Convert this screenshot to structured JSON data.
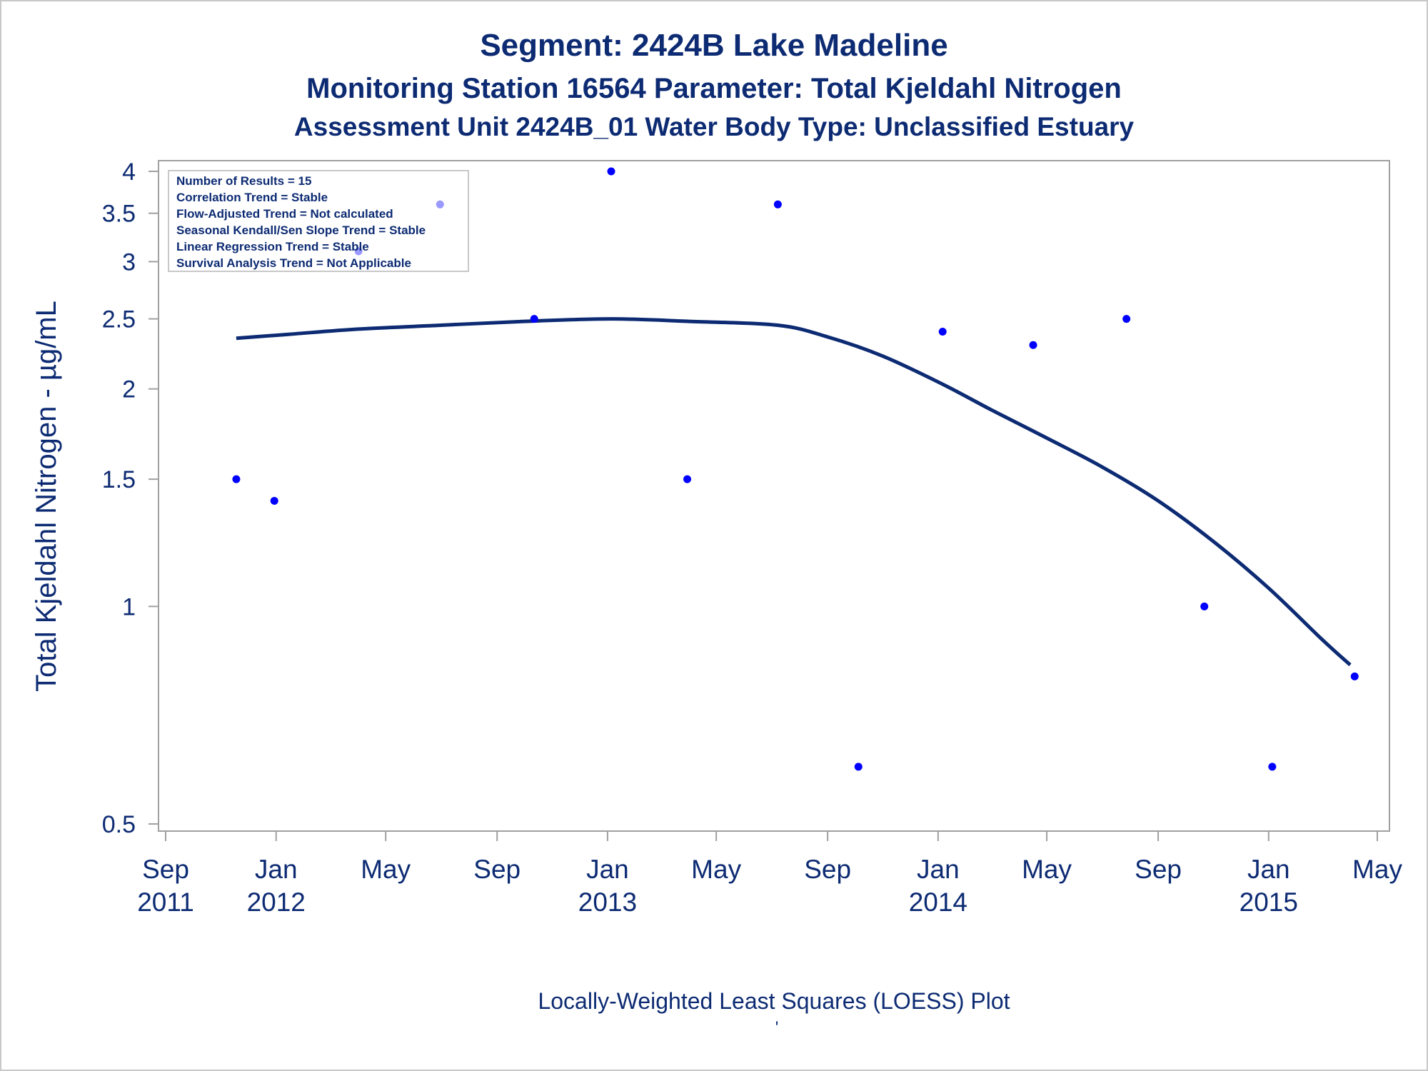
{
  "chart_data": {
    "type": "scatter",
    "title": "Segment: 2424B  Lake Madeline",
    "subtitle": "Monitoring Station 16564 Parameter: Total Kjeldahl Nitrogen",
    "subtitle2": "Assessment Unit 2424B_01   Water Body Type: Unclassified Estuary",
    "ylabel": "Total Kjeldahl Nitrogen -  µg/mL",
    "footnote": "Locally-Weighted Least Squares (LOESS) Plot",
    "footnote_mark": "'",
    "y_scale": "log",
    "ylim": [
      0.5,
      4
    ],
    "xlim": [
      "2011-09-01",
      "2015-05-01"
    ],
    "y_ticks": [
      {
        "value": 0.5,
        "label": "0.5"
      },
      {
        "value": 1,
        "label": "1"
      },
      {
        "value": 1.5,
        "label": "1.5"
      },
      {
        "value": 2,
        "label": "2"
      },
      {
        "value": 2.5,
        "label": "2.5"
      },
      {
        "value": 3,
        "label": "3"
      },
      {
        "value": 3.5,
        "label": "3.5"
      },
      {
        "value": 4,
        "label": "4"
      }
    ],
    "x_ticks": [
      {
        "date": "2011-09-01",
        "label1": "Sep",
        "label2": "2011"
      },
      {
        "date": "2012-01-01",
        "label1": "Jan",
        "label2": "2012"
      },
      {
        "date": "2012-05-01",
        "label1": "May",
        "label2": ""
      },
      {
        "date": "2012-09-01",
        "label1": "Sep",
        "label2": ""
      },
      {
        "date": "2013-01-01",
        "label1": "Jan",
        "label2": "2013"
      },
      {
        "date": "2013-05-01",
        "label1": "May",
        "label2": ""
      },
      {
        "date": "2013-09-01",
        "label1": "Sep",
        "label2": ""
      },
      {
        "date": "2014-01-01",
        "label1": "Jan",
        "label2": "2014"
      },
      {
        "date": "2014-05-01",
        "label1": "May",
        "label2": ""
      },
      {
        "date": "2014-09-01",
        "label1": "Sep",
        "label2": ""
      },
      {
        "date": "2015-01-01",
        "label1": "Jan",
        "label2": "2015"
      },
      {
        "date": "2015-05-01",
        "label1": "May",
        "label2": ""
      }
    ],
    "points": [
      {
        "date": "2011-11-18",
        "y": 1.5
      },
      {
        "date": "2011-12-30",
        "y": 1.4
      },
      {
        "date": "2012-04-01",
        "y": 3.1
      },
      {
        "date": "2012-06-30",
        "y": 3.6
      },
      {
        "date": "2012-10-12",
        "y": 2.5
      },
      {
        "date": "2013-01-05",
        "y": 4.0
      },
      {
        "date": "2013-03-30",
        "y": 1.5
      },
      {
        "date": "2013-07-08",
        "y": 3.6
      },
      {
        "date": "2013-10-05",
        "y": 0.6
      },
      {
        "date": "2014-01-06",
        "y": 2.4
      },
      {
        "date": "2014-04-16",
        "y": 2.3
      },
      {
        "date": "2014-07-28",
        "y": 2.5
      },
      {
        "date": "2014-10-22",
        "y": 1.0
      },
      {
        "date": "2015-01-05",
        "y": 0.6
      },
      {
        "date": "2015-04-06",
        "y": 0.8
      }
    ],
    "loess": [
      {
        "date": "2011-11-18",
        "y": 2.35
      },
      {
        "date": "2012-01-15",
        "y": 2.38
      },
      {
        "date": "2012-04-01",
        "y": 2.42
      },
      {
        "date": "2012-07-01",
        "y": 2.45
      },
      {
        "date": "2012-10-01",
        "y": 2.48
      },
      {
        "date": "2013-01-05",
        "y": 2.5
      },
      {
        "date": "2013-04-01",
        "y": 2.48
      },
      {
        "date": "2013-07-08",
        "y": 2.45
      },
      {
        "date": "2013-09-01",
        "y": 2.36
      },
      {
        "date": "2013-11-01",
        "y": 2.22
      },
      {
        "date": "2014-01-06",
        "y": 2.03
      },
      {
        "date": "2014-03-01",
        "y": 1.87
      },
      {
        "date": "2014-05-01",
        "y": 1.71
      },
      {
        "date": "2014-07-01",
        "y": 1.56
      },
      {
        "date": "2014-09-01",
        "y": 1.4
      },
      {
        "date": "2014-11-01",
        "y": 1.23
      },
      {
        "date": "2015-01-01",
        "y": 1.06
      },
      {
        "date": "2015-03-01",
        "y": 0.9
      },
      {
        "date": "2015-04-01",
        "y": 0.83
      }
    ],
    "stats_box": [
      "Number of Results = 15",
      "Correlation Trend = Stable",
      "Flow-Adjusted Trend = Not calculated",
      "Seasonal Kendall/Sen Slope Trend = Stable",
      "Linear Regression Trend = Stable",
      "Survival Analysis Trend = Not Applicable"
    ],
    "stats_box_position": "top-left",
    "colors": {
      "text": "#0d2b73",
      "points": "#0000ff",
      "loess": "#0d2b73",
      "frame": "#a0a0a0"
    }
  }
}
